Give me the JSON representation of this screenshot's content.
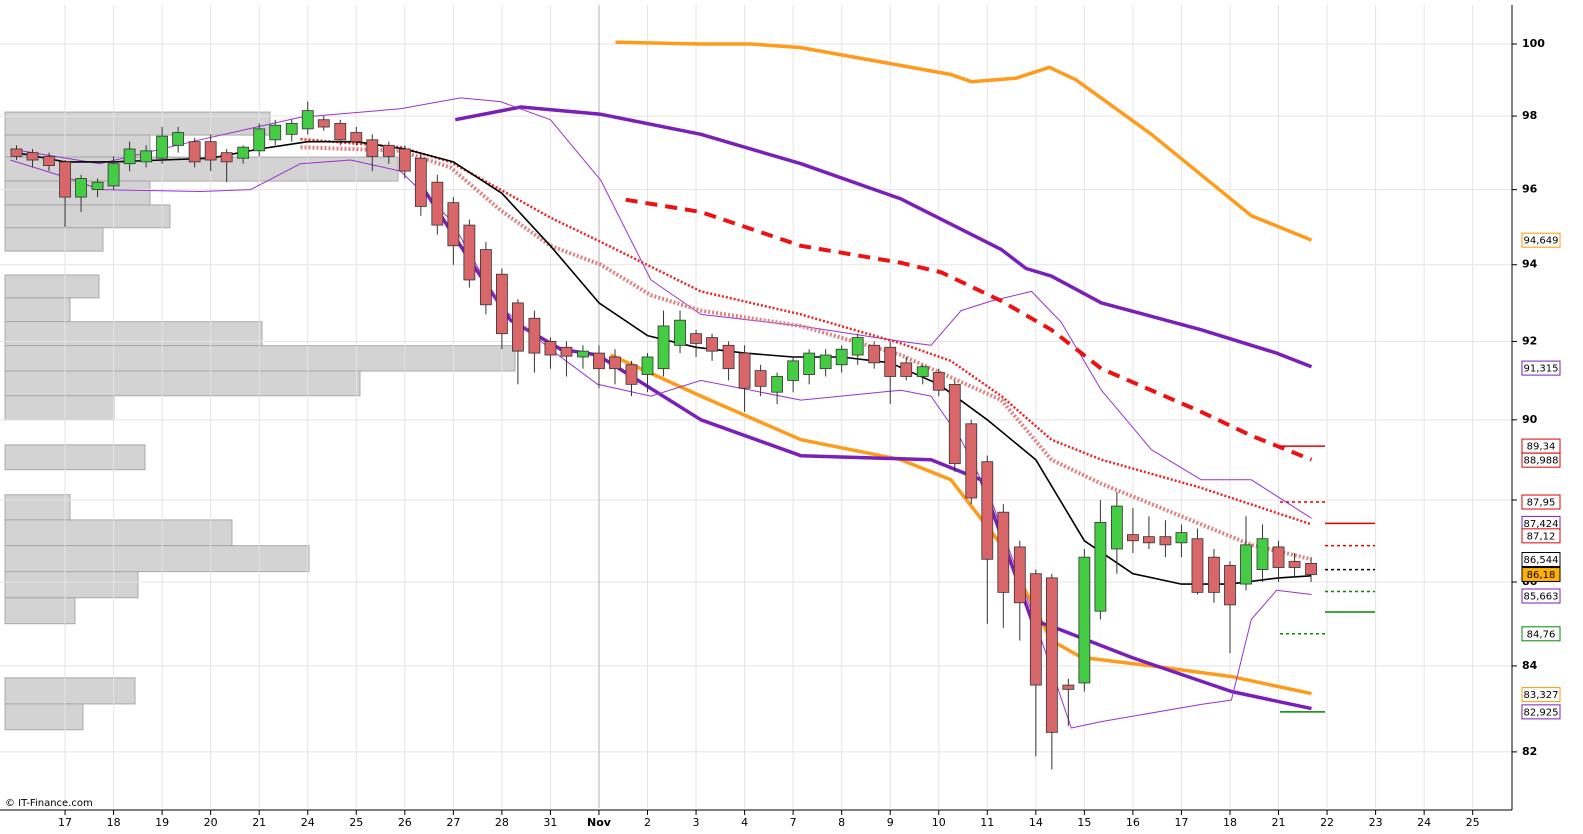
{
  "chart_data": {
    "type": "candlestick",
    "source": "© IT-Finance.com",
    "log_y": true,
    "grid": true,
    "xlim": [
      -1.34,
      29.81
    ],
    "ylim": [
      80.72,
      101.1
    ],
    "yticks": [
      82,
      84,
      86,
      88,
      90,
      92,
      94,
      96,
      98,
      100
    ],
    "xticks": [
      {
        "value": 0,
        "label": "17"
      },
      {
        "value": 1,
        "label": "18"
      },
      {
        "value": 2,
        "label": "19"
      },
      {
        "value": 3,
        "label": "20"
      },
      {
        "value": 4,
        "label": "21"
      },
      {
        "value": 5,
        "label": "24"
      },
      {
        "value": 6,
        "label": "25"
      },
      {
        "value": 7,
        "label": "26"
      },
      {
        "value": 8,
        "label": "27"
      },
      {
        "value": 9,
        "label": "28"
      },
      {
        "value": 10,
        "label": "31"
      },
      {
        "value": 11,
        "label": "Nov",
        "major": true
      },
      {
        "value": 12,
        "label": "2"
      },
      {
        "value": 13,
        "label": "3"
      },
      {
        "value": 14,
        "label": "4"
      },
      {
        "value": 15,
        "label": "7"
      },
      {
        "value": 16,
        "label": "8"
      },
      {
        "value": 17,
        "label": "9"
      },
      {
        "value": 18,
        "label": "10"
      },
      {
        "value": 19,
        "label": "11"
      },
      {
        "value": 20,
        "label": "14"
      },
      {
        "value": 21,
        "label": "15"
      },
      {
        "value": 22,
        "label": "16"
      },
      {
        "value": 23,
        "label": "17"
      },
      {
        "value": 24,
        "label": "18"
      },
      {
        "value": 25,
        "label": "21"
      },
      {
        "value": 26,
        "label": "22"
      },
      {
        "value": 27,
        "label": "23"
      },
      {
        "value": 28,
        "label": "24"
      },
      {
        "value": 29,
        "label": "25"
      }
    ],
    "up_color": "#44cc44",
    "down_color": "#d9676a",
    "candles": {
      "x": [
        -1,
        -0.67,
        -0.33,
        0,
        0.33,
        0.67,
        1,
        1.33,
        1.67,
        2,
        2.33,
        2.67,
        3,
        3.33,
        3.67,
        4,
        4.33,
        4.67,
        5,
        5.33,
        5.67,
        6,
        6.33,
        6.67,
        7,
        7.33,
        7.67,
        8,
        8.33,
        8.67,
        9,
        9.33,
        9.67,
        10,
        10.33,
        10.67,
        11,
        11.33,
        11.67,
        12,
        12.33,
        12.67,
        13,
        13.33,
        13.67,
        14,
        14.33,
        14.67,
        15,
        15.33,
        15.67,
        16,
        16.33,
        16.67,
        17,
        17.33,
        17.67,
        18,
        18.33,
        18.67,
        19,
        19.33,
        19.67,
        20,
        20.33,
        20.67,
        21,
        21.33,
        21.67,
        22,
        22.33,
        22.67,
        23,
        23.33,
        23.67,
        24,
        24.33,
        24.67,
        25,
        25.33,
        25.67
      ],
      "open": [
        97.1,
        97.0,
        96.9,
        96.75,
        95.8,
        96.0,
        96.1,
        96.7,
        96.75,
        96.85,
        97.2,
        97.3,
        97.3,
        97.0,
        96.85,
        97.05,
        97.35,
        97.5,
        97.65,
        97.9,
        97.8,
        97.55,
        97.35,
        97.2,
        97.1,
        96.85,
        96.2,
        95.65,
        95.05,
        94.4,
        93.75,
        93.0,
        92.6,
        92.0,
        91.85,
        91.6,
        91.7,
        91.6,
        91.4,
        91.15,
        91.3,
        91.9,
        92.2,
        92.1,
        91.9,
        91.7,
        91.25,
        90.7,
        91.0,
        91.15,
        91.3,
        91.4,
        91.65,
        91.9,
        91.85,
        91.45,
        91.1,
        91.2,
        90.9,
        89.9,
        88.95,
        87.7,
        86.85,
        86.2,
        86.1,
        83.55,
        83.6,
        85.3,
        86.8,
        87.15,
        87.1,
        87.1,
        86.95,
        87.05,
        86.6,
        86.4,
        85.95,
        86.3,
        86.85,
        86.5,
        86.45
      ],
      "high": [
        97.2,
        97.1,
        97.0,
        96.8,
        96.4,
        96.3,
        96.9,
        97.3,
        97.2,
        97.7,
        97.7,
        97.4,
        97.5,
        97.1,
        97.2,
        97.8,
        97.9,
        97.9,
        98.4,
        98.0,
        97.9,
        97.7,
        97.5,
        97.3,
        97.2,
        97.0,
        96.4,
        95.8,
        95.2,
        94.6,
        93.9,
        93.1,
        92.8,
        92.1,
        92.0,
        91.9,
        91.9,
        91.8,
        91.5,
        91.7,
        92.8,
        92.8,
        92.3,
        92.2,
        92.0,
        91.9,
        91.4,
        91.2,
        91.6,
        91.8,
        91.8,
        91.9,
        92.2,
        92.0,
        92.0,
        91.6,
        91.4,
        91.3,
        91.0,
        90.0,
        89.1,
        87.9,
        87.0,
        86.3,
        86.2,
        83.7,
        86.8,
        88.0,
        88.2,
        87.8,
        87.6,
        87.5,
        87.4,
        87.3,
        86.8,
        86.5,
        87.6,
        87.4,
        87.0,
        86.7,
        86.6
      ],
      "low": [
        96.8,
        96.6,
        96.5,
        95.0,
        95.4,
        95.8,
        96.0,
        96.5,
        96.6,
        96.7,
        97.0,
        96.6,
        96.5,
        96.2,
        96.7,
        96.9,
        97.2,
        97.3,
        97.5,
        97.6,
        97.2,
        97.2,
        96.5,
        96.7,
        96.3,
        95.3,
        94.8,
        94.0,
        93.4,
        92.7,
        91.8,
        90.9,
        91.2,
        91.3,
        91.1,
        91.3,
        90.8,
        90.9,
        90.6,
        90.7,
        91.1,
        91.7,
        91.6,
        91.5,
        91.0,
        90.2,
        90.6,
        90.4,
        90.7,
        90.9,
        91.1,
        91.2,
        91.4,
        91.3,
        90.4,
        91.0,
        90.9,
        90.6,
        88.7,
        87.9,
        85.0,
        84.9,
        84.6,
        81.9,
        81.6,
        82.6,
        83.4,
        85.1,
        86.2,
        86.7,
        86.8,
        86.6,
        86.6,
        85.7,
        85.5,
        84.3,
        85.8,
        86.0,
        86.0,
        86.1,
        86.0
      ],
      "close": [
        96.9,
        96.8,
        96.65,
        95.8,
        96.3,
        96.2,
        96.7,
        97.1,
        97.05,
        97.45,
        97.55,
        96.75,
        96.8,
        96.75,
        97.15,
        97.65,
        97.75,
        97.8,
        98.15,
        97.7,
        97.35,
        97.3,
        96.9,
        96.9,
        96.5,
        95.55,
        95.05,
        94.5,
        93.6,
        92.95,
        92.2,
        91.75,
        91.7,
        91.65,
        91.62,
        91.75,
        91.3,
        91.3,
        90.9,
        91.6,
        92.4,
        92.55,
        91.95,
        91.75,
        91.3,
        90.8,
        90.85,
        91.1,
        91.5,
        91.7,
        91.65,
        91.8,
        92.1,
        91.45,
        91.1,
        91.1,
        91.35,
        90.75,
        88.9,
        88.05,
        86.55,
        85.75,
        85.5,
        83.55,
        82.45,
        83.45,
        86.6,
        87.45,
        87.85,
        87.0,
        86.95,
        86.9,
        87.2,
        85.75,
        85.75,
        85.45,
        86.9,
        87.05,
        86.35,
        86.35,
        86.18
      ]
    },
    "lines": [
      {
        "color": "#ff9a1a",
        "style": "thick",
        "x": [
          11.34,
          13.1,
          14.13,
          15.16,
          17.22,
          18.25,
          18.67,
          19.6,
          20.28,
          20.83,
          22.38,
          24.44,
          25.68
        ],
        "values": [
          100.05,
          100.0,
          100.0,
          99.9,
          99.4,
          99.15,
          98.95,
          99.05,
          99.35,
          99.0,
          97.5,
          95.3,
          94.65
        ]
      },
      {
        "color": "#ff9a1a",
        "style": "thick",
        "x": [
          11.24,
          13.1,
          15.16,
          17.22,
          18.25,
          19.29,
          20.32,
          20.94,
          22.38,
          24.03,
          25.68
        ],
        "values": [
          91.65,
          90.6,
          89.5,
          89.0,
          88.5,
          86.9,
          84.6,
          84.2,
          84.0,
          83.75,
          83.35
        ]
      },
      {
        "color": "#7a1fb8",
        "style": "thick",
        "x": [
          8.04,
          9.39,
          11.04,
          13.1,
          15.16,
          17.22,
          19.29,
          19.8,
          20.32,
          21.35,
          23.41,
          24.96,
          25.68
        ],
        "values": [
          97.9,
          98.25,
          98.05,
          97.5,
          96.7,
          95.75,
          94.4,
          93.9,
          93.7,
          93.0,
          92.3,
          91.7,
          91.35
        ]
      },
      {
        "color": "#7a1fb8",
        "style": "thick",
        "x": [
          7.32,
          8.35,
          9.18,
          10.21,
          10.97,
          13.1,
          15.16,
          17.84,
          18.87,
          19.91,
          20.52,
          21.97,
          24.03,
          25.68
        ],
        "values": [
          96.15,
          94.1,
          92.55,
          91.8,
          91.65,
          90.0,
          89.1,
          89.0,
          88.5,
          85.1,
          84.85,
          84.2,
          83.4,
          83.0
        ]
      },
      {
        "color": "#9933cc",
        "style": "thin",
        "x": [
          -1.13,
          0.72,
          2.78,
          4.85,
          6.91,
          8.15,
          8.97,
          10.0,
          11.04,
          12.07,
          13.1,
          15.16,
          17.22,
          17.84,
          18.46,
          19.08,
          19.91,
          20.52,
          21.35,
          22.38,
          23.41,
          24.44,
          25.68
        ],
        "values": [
          97.1,
          96.7,
          97.35,
          97.97,
          98.2,
          98.5,
          98.4,
          97.9,
          96.25,
          93.6,
          92.7,
          92.4,
          92.0,
          91.9,
          92.8,
          93.05,
          93.3,
          92.5,
          90.75,
          89.25,
          88.5,
          88.5,
          87.55
        ]
      },
      {
        "color": "#9933cc",
        "style": "thin",
        "x": [
          -1.13,
          0.1,
          0.72,
          2.78,
          3.82,
          4.85,
          5.88,
          6.91,
          7.94,
          8.97,
          10.0,
          10.97,
          12.07,
          13.1,
          15.16,
          17.22,
          17.84,
          18.46,
          19.08,
          19.91,
          20.73,
          21.35,
          23.41,
          24.03,
          24.44,
          24.96,
          25.68
        ],
        "values": [
          96.8,
          96.3,
          96.0,
          95.95,
          96.0,
          96.7,
          96.8,
          96.5,
          95.2,
          92.9,
          91.8,
          90.9,
          90.6,
          91.0,
          90.5,
          90.75,
          90.6,
          89.5,
          88.0,
          85.3,
          82.55,
          82.7,
          83.1,
          83.2,
          85.1,
          85.8,
          85.7
        ]
      },
      {
        "color": "#e08080",
        "style": "dotted-thick",
        "x": [
          4.85,
          6.91,
          7.94,
          8.97,
          10.0,
          11.04,
          12.07,
          13.1,
          15.16,
          17.22,
          19.29,
          20.32,
          21.35,
          22.38,
          23.41,
          24.44,
          25.68
        ],
        "values": [
          97.15,
          97.05,
          96.6,
          95.45,
          94.5,
          94.0,
          93.2,
          92.8,
          92.4,
          91.65,
          90.5,
          89.0,
          88.4,
          87.9,
          87.4,
          86.9,
          86.55
        ]
      },
      {
        "color": "#ee2222",
        "style": "dotted",
        "x": [
          4.85,
          6.91,
          7.94,
          8.97,
          10.0,
          11.04,
          13.1,
          15.16,
          17.22,
          18.25,
          19.29,
          20.32,
          21.35,
          23.41,
          25.68
        ],
        "values": [
          97.37,
          97.15,
          96.75,
          96.0,
          95.25,
          94.6,
          93.3,
          92.7,
          91.95,
          91.5,
          90.6,
          89.5,
          89.0,
          88.3,
          87.4
        ]
      },
      {
        "color": "#ee1111",
        "style": "dashed",
        "x": [
          11.55,
          13.1,
          15.16,
          17.22,
          18.05,
          19.29,
          20.32,
          21.35,
          23.41,
          24.44,
          25.68
        ],
        "values": [
          95.73,
          95.4,
          94.5,
          94.05,
          93.8,
          93.05,
          92.3,
          91.3,
          90.2,
          89.6,
          89.0
        ]
      },
      {
        "color": "#000000",
        "style": "black",
        "x": [
          -1,
          0,
          1,
          2,
          3,
          4,
          5,
          6,
          7,
          8,
          9,
          10,
          11,
          12,
          13,
          14,
          15,
          16,
          17,
          18,
          19,
          20,
          21,
          22,
          23,
          24,
          25,
          25.67
        ],
        "values": [
          97.0,
          96.75,
          96.75,
          96.8,
          96.85,
          97.1,
          97.3,
          97.3,
          97.1,
          96.75,
          95.9,
          94.5,
          93.0,
          92.15,
          91.85,
          91.7,
          91.6,
          91.6,
          91.45,
          90.9,
          90.0,
          89.0,
          87.0,
          86.2,
          85.95,
          85.95,
          86.1,
          86.15
        ]
      }
    ],
    "volume_profile": {
      "color": "#d3d3d3",
      "price_low": [
        97.48,
        96.88,
        96.23,
        95.59,
        94.98,
        94.36,
        93.13,
        92.51,
        91.89,
        91.24,
        90.61,
        90.0,
        88.75,
        87.51,
        86.88,
        86.25,
        85.62,
        85.0,
        83.11,
        82.51
      ],
      "price_high": [
        98.11,
        97.48,
        96.88,
        96.23,
        95.59,
        94.98,
        93.73,
        93.13,
        92.51,
        91.89,
        91.24,
        90.61,
        89.37,
        88.13,
        87.51,
        86.88,
        86.25,
        85.62,
        83.72,
        83.11
      ],
      "volumes": [
        265,
        145,
        393,
        145,
        165,
        98,
        94,
        65,
        257,
        510,
        355,
        109,
        140,
        65,
        227,
        304,
        133,
        70,
        130,
        78
      ]
    },
    "levels": [
      [
        {
          "value": 89.34,
          "color": "#e00000",
          "style": "solid"
        },
        {
          "value": 87.95,
          "color": "#e00000",
          "style": "dotted"
        },
        {
          "value": 84.76,
          "color": "#008800",
          "style": "dotted"
        },
        {
          "value": 82.925,
          "color": "#008800",
          "style": "solid"
        }
      ],
      [
        {
          "value": 87.424,
          "color": "#e00000",
          "style": "solid"
        },
        {
          "value": 86.88,
          "color": "#e00000",
          "style": "dotted"
        },
        {
          "value": 86.3,
          "color": "#000000",
          "style": "dotted"
        },
        {
          "value": 85.77,
          "color": "#008800",
          "style": "dotted"
        },
        {
          "value": 85.28,
          "color": "#008800",
          "style": "solid"
        }
      ]
    ],
    "price_labels": [
      {
        "value": 94.649,
        "label": "94,649",
        "color": "#ff9900"
      },
      {
        "value": 91.315,
        "label": "91,315",
        "color": "#7a1fb8"
      },
      {
        "value": 89.34,
        "label": "89,34",
        "color": "#e00000"
      },
      {
        "value": 88.988,
        "label": "88,988",
        "color": "#e00000"
      },
      {
        "value": 87.95,
        "label": "87,95",
        "color": "#e00000"
      },
      {
        "value": 87.424,
        "label": "87,424",
        "color": "#7a1fb8"
      },
      {
        "value": 87.12,
        "label": "87,12",
        "color": "#e00000"
      },
      {
        "value": 86.544,
        "label": "86,544",
        "color": "#000000"
      },
      {
        "value": 86.18,
        "label": "86,18",
        "color": "#000000",
        "background": "#ffb000"
      },
      {
        "value": 85.663,
        "label": "85,663",
        "color": "#7a1fb8"
      },
      {
        "value": 84.76,
        "label": "84,76",
        "color": "#008800"
      },
      {
        "value": 83.327,
        "label": "83,327",
        "color": "#ff9900"
      },
      {
        "value": 82.925,
        "label": "82,925",
        "color": "#7a1fb8"
      }
    ]
  }
}
